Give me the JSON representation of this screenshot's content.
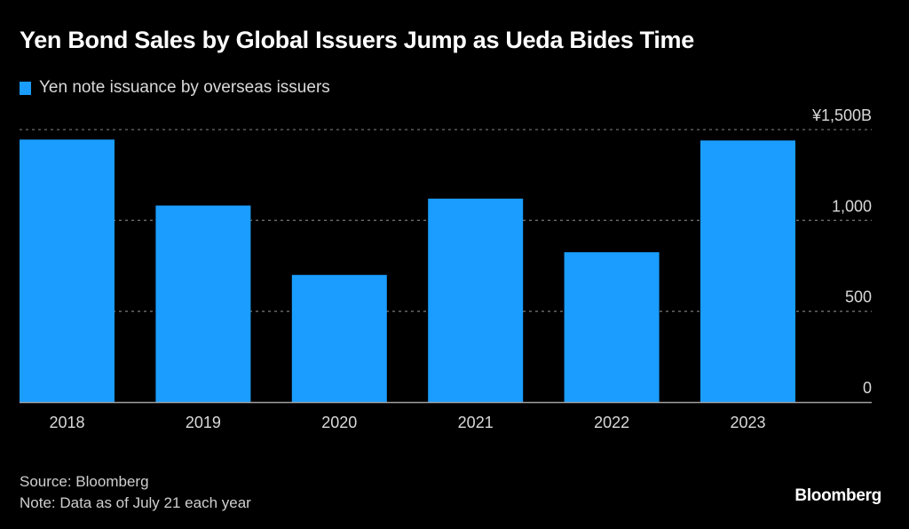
{
  "chart_data": {
    "type": "bar",
    "title": "Yen Bond Sales by Global Issuers Jump as Ueda Bides Time",
    "legend": [
      {
        "label": "Yen note issuance by overseas issuers",
        "color": "#1a9dff"
      }
    ],
    "legend_placement": "top-left",
    "categories": [
      "2018",
      "2019",
      "2020",
      "2021",
      "2022",
      "2023"
    ],
    "series": [
      {
        "name": "Yen note issuance by overseas issuers",
        "color": "#1a9dff",
        "values": [
          1445,
          1082,
          700,
          1120,
          825,
          1440
        ]
      }
    ],
    "xlabel": "",
    "ylabel": "",
    "y_axis_position": "right",
    "ylim": [
      0,
      1500
    ],
    "yticks": [
      0,
      500,
      1000,
      1500
    ],
    "ytick_labels": [
      "0",
      "500",
      "1,000",
      "¥1,500B"
    ],
    "grid": true,
    "source": "Source: Bloomberg",
    "note": "Note: Data as of July 21 each year"
  },
  "brand": "Bloomberg",
  "colors": {
    "background": "#000000",
    "bar": "#1a9dff",
    "grid": "#6e6e6e",
    "axis": "#a0a0a0",
    "tick_text": "#d9d9d9"
  }
}
